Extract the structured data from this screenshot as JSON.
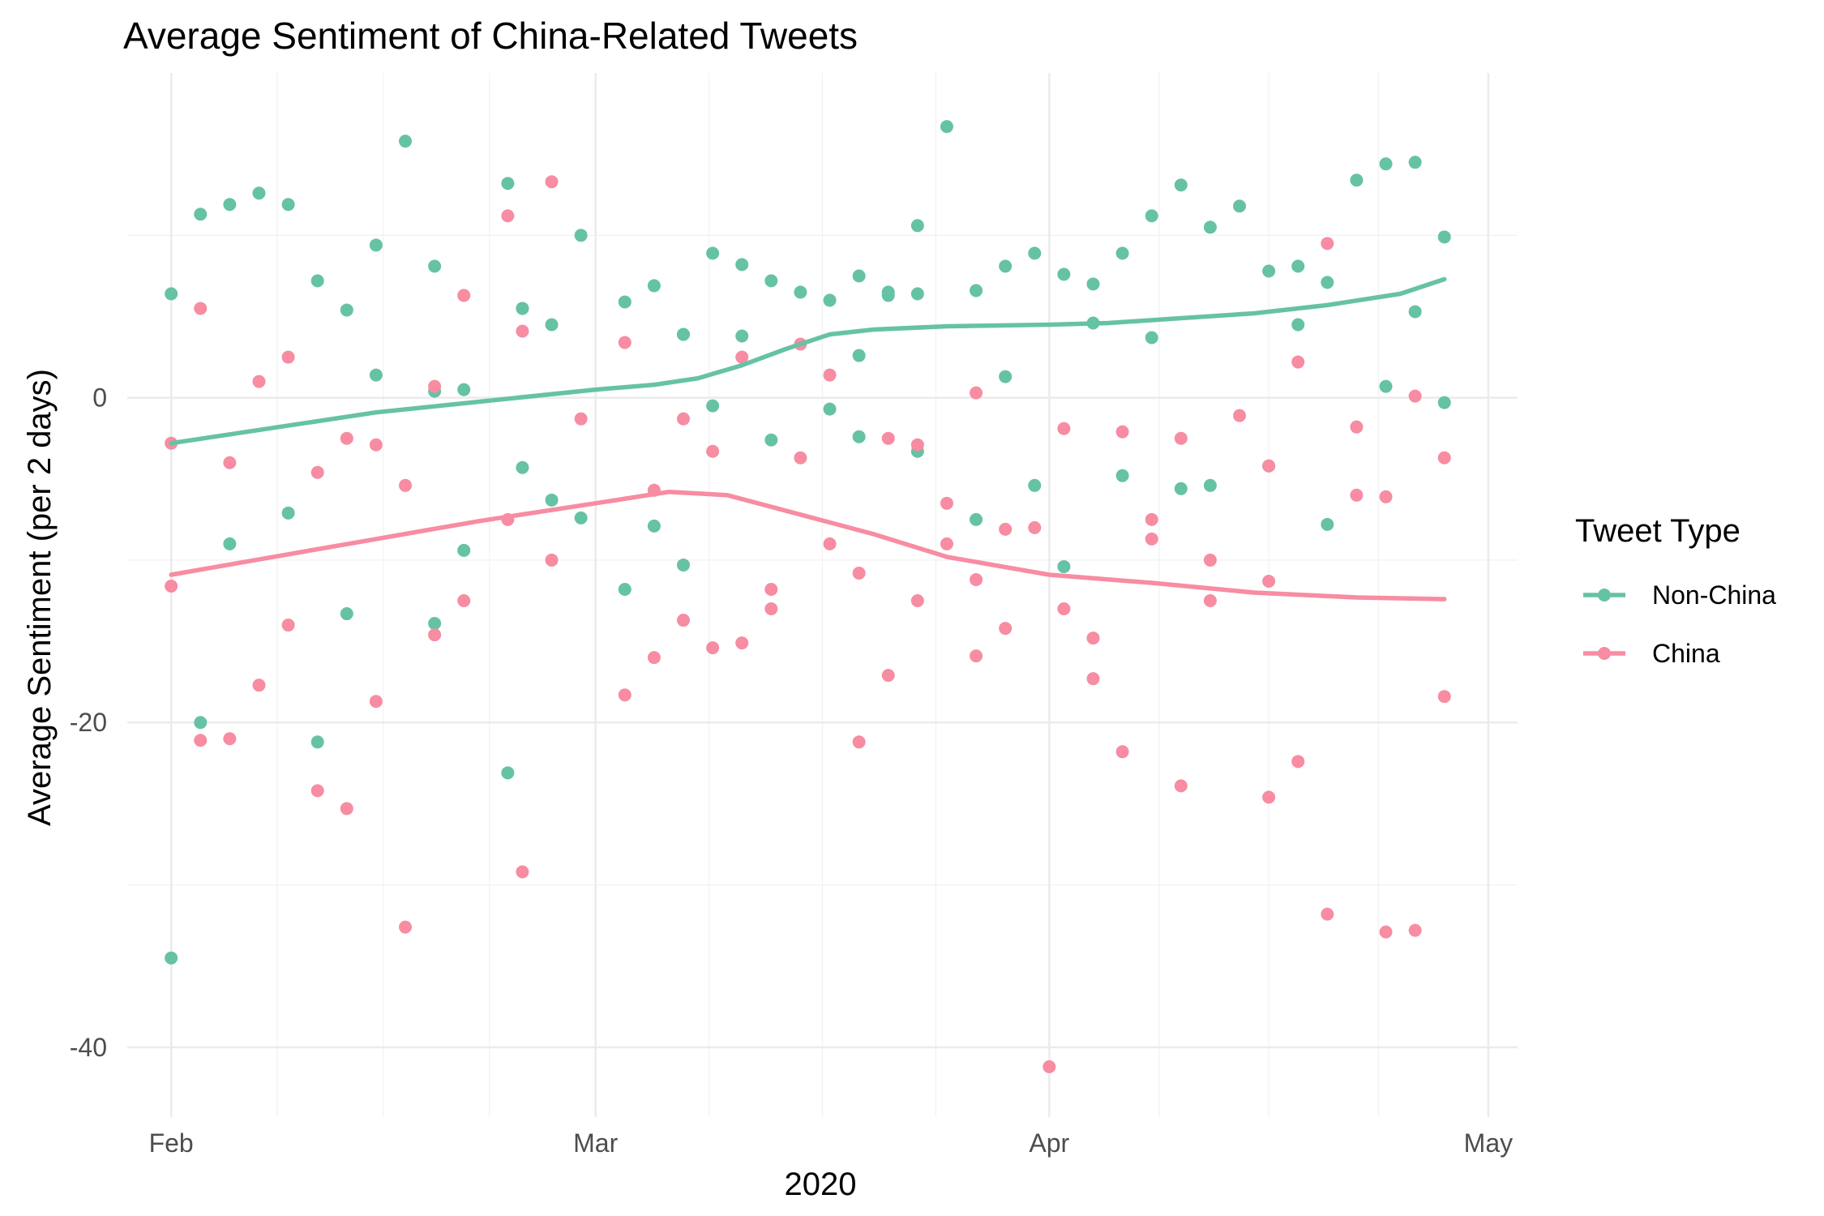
{
  "chart_data": {
    "type": "scatter",
    "title": "Average Sentiment of China-Related Tweets",
    "xlabel": "2020",
    "ylabel": "Average Sentiment (per 2 days)",
    "x_type": "date",
    "xlim": [
      "2020-01-29",
      "2020-05-03"
    ],
    "ylim": [
      -44.3,
      20
    ],
    "x_ticks": [
      {
        "date": "2020-02-01",
        "label": "Feb"
      },
      {
        "date": "2020-03-01",
        "label": "Mar"
      },
      {
        "date": "2020-04-01",
        "label": "Apr"
      },
      {
        "date": "2020-05-01",
        "label": "May"
      }
    ],
    "y_ticks": [
      {
        "value": 0,
        "label": "0"
      },
      {
        "value": -20,
        "label": "-20"
      },
      {
        "value": -40,
        "label": "-40"
      }
    ],
    "grid": true,
    "legend": {
      "title": "Tweet Type",
      "position": "right"
    },
    "series": [
      {
        "name": "Non-China",
        "color": "#66c2a5",
        "points": [
          {
            "x": "2020-02-01",
            "y": 6.4
          },
          {
            "x": "2020-02-03",
            "y": 11.3
          },
          {
            "x": "2020-02-05",
            "y": 11.9
          },
          {
            "x": "2020-02-07",
            "y": 12.6
          },
          {
            "x": "2020-02-09",
            "y": 11.9
          },
          {
            "x": "2020-02-11",
            "y": 7.2
          },
          {
            "x": "2020-02-13",
            "y": 5.4
          },
          {
            "x": "2020-02-15",
            "y": 9.4
          },
          {
            "x": "2020-02-17",
            "y": 15.8
          },
          {
            "x": "2020-02-19",
            "y": 8.1
          },
          {
            "x": "2020-02-21",
            "y": 0.5
          },
          {
            "x": "2020-02-24",
            "y": 13.2
          },
          {
            "x": "2020-02-25",
            "y": 5.5
          },
          {
            "x": "2020-02-27",
            "y": 4.5
          },
          {
            "x": "2020-02-29",
            "y": 10.0
          },
          {
            "x": "2020-03-03",
            "y": 5.9
          },
          {
            "x": "2020-03-05",
            "y": 6.9
          },
          {
            "x": "2020-03-07",
            "y": 3.9
          },
          {
            "x": "2020-03-09",
            "y": 8.9
          },
          {
            "x": "2020-03-11",
            "y": 8.2
          },
          {
            "x": "2020-03-13",
            "y": 7.2
          },
          {
            "x": "2020-03-15",
            "y": 6.5
          },
          {
            "x": "2020-03-17",
            "y": 6.0
          },
          {
            "x": "2020-03-19",
            "y": 7.5
          },
          {
            "x": "2020-03-21",
            "y": 6.5
          },
          {
            "x": "2020-03-23",
            "y": 10.6
          },
          {
            "x": "2020-03-25",
            "y": 16.7
          },
          {
            "x": "2020-03-27",
            "y": 6.6
          },
          {
            "x": "2020-03-29",
            "y": 8.1
          },
          {
            "x": "2020-03-31",
            "y": 8.9
          },
          {
            "x": "2020-04-02",
            "y": 7.6
          },
          {
            "x": "2020-04-04",
            "y": 7.0
          },
          {
            "x": "2020-04-06",
            "y": 8.9
          },
          {
            "x": "2020-04-08",
            "y": 11.2
          },
          {
            "x": "2020-04-10",
            "y": 13.1
          },
          {
            "x": "2020-04-12",
            "y": 10.5
          },
          {
            "x": "2020-04-14",
            "y": 11.8
          },
          {
            "x": "2020-04-16",
            "y": 7.8
          },
          {
            "x": "2020-04-18",
            "y": 8.1
          },
          {
            "x": "2020-04-20",
            "y": 7.1
          },
          {
            "x": "2020-04-22",
            "y": 13.4
          },
          {
            "x": "2020-04-24",
            "y": 14.4
          },
          {
            "x": "2020-04-26",
            "y": 14.5
          },
          {
            "x": "2020-04-28",
            "y": 9.9
          },
          {
            "x": "2020-02-15",
            "y": 1.4
          },
          {
            "x": "2020-02-19",
            "y": 0.4
          },
          {
            "x": "2020-02-25",
            "y": 5.5
          },
          {
            "x": "2020-03-07",
            "y": 3.9
          },
          {
            "x": "2020-03-11",
            "y": 3.8
          },
          {
            "x": "2020-03-19",
            "y": 2.6
          },
          {
            "x": "2020-03-21",
            "y": 6.3
          },
          {
            "x": "2020-03-23",
            "y": 6.4
          },
          {
            "x": "2020-03-29",
            "y": 1.3
          },
          {
            "x": "2020-04-04",
            "y": 4.6
          },
          {
            "x": "2020-04-08",
            "y": 3.7
          },
          {
            "x": "2020-04-18",
            "y": 4.5
          },
          {
            "x": "2020-04-24",
            "y": 0.7
          },
          {
            "x": "2020-04-26",
            "y": 5.3
          },
          {
            "x": "2020-04-28",
            "y": -0.3
          },
          {
            "x": "2020-02-05",
            "y": -9.0
          },
          {
            "x": "2020-02-09",
            "y": -7.1
          },
          {
            "x": "2020-02-13",
            "y": -13.3
          },
          {
            "x": "2020-02-19",
            "y": -13.9
          },
          {
            "x": "2020-02-21",
            "y": -9.4
          },
          {
            "x": "2020-02-25",
            "y": -4.3
          },
          {
            "x": "2020-02-27",
            "y": -6.3
          },
          {
            "x": "2020-02-29",
            "y": -7.4
          },
          {
            "x": "2020-03-03",
            "y": -11.8
          },
          {
            "x": "2020-03-05",
            "y": -7.9
          },
          {
            "x": "2020-03-07",
            "y": -10.3
          },
          {
            "x": "2020-03-09",
            "y": -0.5
          },
          {
            "x": "2020-03-13",
            "y": -2.6
          },
          {
            "x": "2020-03-17",
            "y": -0.7
          },
          {
            "x": "2020-03-19",
            "y": -2.4
          },
          {
            "x": "2020-03-23",
            "y": -3.3
          },
          {
            "x": "2020-03-27",
            "y": -7.5
          },
          {
            "x": "2020-03-31",
            "y": -5.4
          },
          {
            "x": "2020-04-02",
            "y": -10.4
          },
          {
            "x": "2020-04-06",
            "y": -4.8
          },
          {
            "x": "2020-04-10",
            "y": -5.6
          },
          {
            "x": "2020-04-12",
            "y": -5.4
          },
          {
            "x": "2020-04-16",
            "y": -4.2
          },
          {
            "x": "2020-04-20",
            "y": -7.8
          },
          {
            "x": "2020-02-01",
            "y": -34.5
          },
          {
            "x": "2020-02-03",
            "y": -20.0
          },
          {
            "x": "2020-02-11",
            "y": -21.2
          },
          {
            "x": "2020-02-24",
            "y": -23.1
          }
        ],
        "trend": [
          {
            "x": "2020-02-01",
            "y": -2.8
          },
          {
            "x": "2020-02-15",
            "y": -0.9
          },
          {
            "x": "2020-03-01",
            "y": 0.5
          },
          {
            "x": "2020-03-05",
            "y": 0.8
          },
          {
            "x": "2020-03-08",
            "y": 1.2
          },
          {
            "x": "2020-03-11",
            "y": 2.0
          },
          {
            "x": "2020-03-14",
            "y": 3.0
          },
          {
            "x": "2020-03-17",
            "y": 3.9
          },
          {
            "x": "2020-03-20",
            "y": 4.2
          },
          {
            "x": "2020-03-25",
            "y": 4.4
          },
          {
            "x": "2020-04-01",
            "y": 4.5
          },
          {
            "x": "2020-04-05",
            "y": 4.6
          },
          {
            "x": "2020-04-10",
            "y": 4.9
          },
          {
            "x": "2020-04-15",
            "y": 5.2
          },
          {
            "x": "2020-04-20",
            "y": 5.7
          },
          {
            "x": "2020-04-25",
            "y": 6.4
          },
          {
            "x": "2020-04-28",
            "y": 7.3
          }
        ]
      },
      {
        "name": "China",
        "color": "#f78ca2",
        "points": [
          {
            "x": "2020-02-03",
            "y": 5.5
          },
          {
            "x": "2020-02-07",
            "y": 1.0
          },
          {
            "x": "2020-02-09",
            "y": 2.5
          },
          {
            "x": "2020-02-19",
            "y": 0.7
          },
          {
            "x": "2020-02-21",
            "y": 6.3
          },
          {
            "x": "2020-02-24",
            "y": 11.2
          },
          {
            "x": "2020-02-25",
            "y": 4.1
          },
          {
            "x": "2020-02-27",
            "y": 13.3
          },
          {
            "x": "2020-03-03",
            "y": 3.4
          },
          {
            "x": "2020-03-11",
            "y": 2.5
          },
          {
            "x": "2020-03-15",
            "y": 3.3
          },
          {
            "x": "2020-03-17",
            "y": 1.4
          },
          {
            "x": "2020-03-27",
            "y": 0.3
          },
          {
            "x": "2020-04-18",
            "y": 2.2
          },
          {
            "x": "2020-04-20",
            "y": 9.5
          },
          {
            "x": "2020-04-26",
            "y": 0.1
          },
          {
            "x": "2020-02-01",
            "y": -2.8
          },
          {
            "x": "2020-02-05",
            "y": -4.0
          },
          {
            "x": "2020-02-13",
            "y": -2.5
          },
          {
            "x": "2020-02-15",
            "y": -2.9
          },
          {
            "x": "2020-02-17",
            "y": -5.4
          },
          {
            "x": "2020-02-11",
            "y": -4.6
          },
          {
            "x": "2020-02-24",
            "y": -7.5
          },
          {
            "x": "2020-02-29",
            "y": -1.3
          },
          {
            "x": "2020-03-05",
            "y": -5.7
          },
          {
            "x": "2020-03-07",
            "y": -1.3
          },
          {
            "x": "2020-03-09",
            "y": -3.3
          },
          {
            "x": "2020-03-15",
            "y": -3.7
          },
          {
            "x": "2020-03-21",
            "y": -2.5
          },
          {
            "x": "2020-03-23",
            "y": -2.9
          },
          {
            "x": "2020-03-25",
            "y": -6.5
          },
          {
            "x": "2020-04-02",
            "y": -1.9
          },
          {
            "x": "2020-04-06",
            "y": -2.1
          },
          {
            "x": "2020-04-10",
            "y": -2.5
          },
          {
            "x": "2020-04-14",
            "y": -1.1
          },
          {
            "x": "2020-04-16",
            "y": -4.2
          },
          {
            "x": "2020-04-22",
            "y": -1.8
          },
          {
            "x": "2020-04-22",
            "y": -6.0
          },
          {
            "x": "2020-04-24",
            "y": -6.1
          },
          {
            "x": "2020-04-28",
            "y": -3.7
          },
          {
            "x": "2020-02-01",
            "y": -11.6
          },
          {
            "x": "2020-02-07",
            "y": -17.7
          },
          {
            "x": "2020-02-09",
            "y": -14.0
          },
          {
            "x": "2020-02-19",
            "y": -14.6
          },
          {
            "x": "2020-02-21",
            "y": -12.5
          },
          {
            "x": "2020-02-27",
            "y": -10.0
          },
          {
            "x": "2020-03-07",
            "y": -13.7
          },
          {
            "x": "2020-03-09",
            "y": -15.4
          },
          {
            "x": "2020-03-11",
            "y": -15.1
          },
          {
            "x": "2020-03-13",
            "y": -11.8
          },
          {
            "x": "2020-03-13",
            "y": -13.0
          },
          {
            "x": "2020-03-17",
            "y": -9.0
          },
          {
            "x": "2020-03-19",
            "y": -10.8
          },
          {
            "x": "2020-03-23",
            "y": -12.5
          },
          {
            "x": "2020-03-25",
            "y": -9.0
          },
          {
            "x": "2020-03-27",
            "y": -11.2
          },
          {
            "x": "2020-03-29",
            "y": -14.2
          },
          {
            "x": "2020-03-29",
            "y": -8.1
          },
          {
            "x": "2020-03-31",
            "y": -8.0
          },
          {
            "x": "2020-04-02",
            "y": -13.0
          },
          {
            "x": "2020-04-04",
            "y": -14.8
          },
          {
            "x": "2020-04-08",
            "y": -7.5
          },
          {
            "x": "2020-04-08",
            "y": -8.7
          },
          {
            "x": "2020-04-12",
            "y": -10.0
          },
          {
            "x": "2020-04-12",
            "y": -12.5
          },
          {
            "x": "2020-04-16",
            "y": -11.3
          },
          {
            "x": "2020-03-27",
            "y": -15.9
          },
          {
            "x": "2020-03-05",
            "y": -16.0
          },
          {
            "x": "2020-03-03",
            "y": -18.3
          },
          {
            "x": "2020-03-21",
            "y": -17.1
          },
          {
            "x": "2020-04-04",
            "y": -17.3
          },
          {
            "x": "2020-04-28",
            "y": -18.4
          },
          {
            "x": "2020-02-03",
            "y": -21.1
          },
          {
            "x": "2020-02-05",
            "y": -21.0
          },
          {
            "x": "2020-02-11",
            "y": -24.2
          },
          {
            "x": "2020-02-13",
            "y": -25.3
          },
          {
            "x": "2020-02-15",
            "y": -18.7
          },
          {
            "x": "2020-03-19",
            "y": -21.2
          },
          {
            "x": "2020-04-06",
            "y": -21.8
          },
          {
            "x": "2020-04-10",
            "y": -23.9
          },
          {
            "x": "2020-04-16",
            "y": -24.6
          },
          {
            "x": "2020-04-18",
            "y": -22.4
          },
          {
            "x": "2020-02-25",
            "y": -29.2
          },
          {
            "x": "2020-02-17",
            "y": -32.6
          },
          {
            "x": "2020-04-20",
            "y": -31.8
          },
          {
            "x": "2020-04-24",
            "y": -32.9
          },
          {
            "x": "2020-04-26",
            "y": -32.8
          },
          {
            "x": "2020-04-01",
            "y": -41.2
          }
        ],
        "trend": [
          {
            "x": "2020-02-01",
            "y": -10.9
          },
          {
            "x": "2020-02-08",
            "y": -9.8
          },
          {
            "x": "2020-02-15",
            "y": -8.7
          },
          {
            "x": "2020-02-22",
            "y": -7.6
          },
          {
            "x": "2020-03-01",
            "y": -6.5
          },
          {
            "x": "2020-03-06",
            "y": -5.8
          },
          {
            "x": "2020-03-10",
            "y": -6.0
          },
          {
            "x": "2020-03-15",
            "y": -7.2
          },
          {
            "x": "2020-03-20",
            "y": -8.4
          },
          {
            "x": "2020-03-25",
            "y": -9.8
          },
          {
            "x": "2020-04-01",
            "y": -10.9
          },
          {
            "x": "2020-04-08",
            "y": -11.4
          },
          {
            "x": "2020-04-15",
            "y": -12.0
          },
          {
            "x": "2020-04-22",
            "y": -12.3
          },
          {
            "x": "2020-04-28",
            "y": -12.4
          }
        ]
      }
    ]
  }
}
